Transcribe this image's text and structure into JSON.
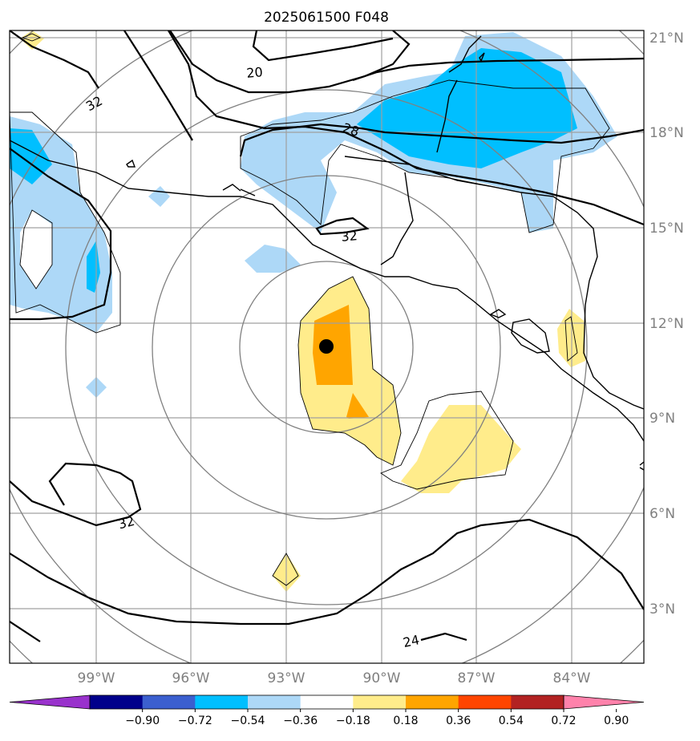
{
  "title": "2025061500 F048",
  "x_ticks": [
    "99°W",
    "96°W",
    "93°W",
    "90°W",
    "87°W",
    "84°W"
  ],
  "y_ticks": [
    "21°N",
    "18°N",
    "15°N",
    "12°N",
    "9°N",
    "6°N",
    "3°N"
  ],
  "contour_labels": [
    "20",
    "32",
    "28",
    "32",
    "32",
    "24"
  ],
  "colorbar": {
    "ticks": [
      "−0.90",
      "−0.72",
      "−0.54",
      "−0.36",
      "−0.18",
      "0.18",
      "0.36",
      "0.54",
      "0.72",
      "0.90"
    ],
    "colors": [
      "#9932cc",
      "#00008b",
      "#3b5fcf",
      "#00bfff",
      "#add8f7",
      "#ffffff",
      "#ffec8b",
      "#ffa500",
      "#ff4500",
      "#b22222",
      "#ff82ab"
    ]
  },
  "chart_data": {
    "type": "map",
    "projection": "lat-lon",
    "lon_range": [
      -101.75,
      -81.75
    ],
    "lat_range": [
      1.5,
      21.5
    ],
    "grid": true,
    "center_marker": {
      "lon": -91.7,
      "lat": 11.3
    },
    "range_rings_count": 5,
    "contour_levels_labeled": [
      20,
      24,
      28,
      32
    ],
    "shaded_levels": [
      -0.9,
      -0.72,
      -0.54,
      -0.36,
      -0.18,
      0.18,
      0.36,
      0.54,
      0.72,
      0.9
    ]
  }
}
